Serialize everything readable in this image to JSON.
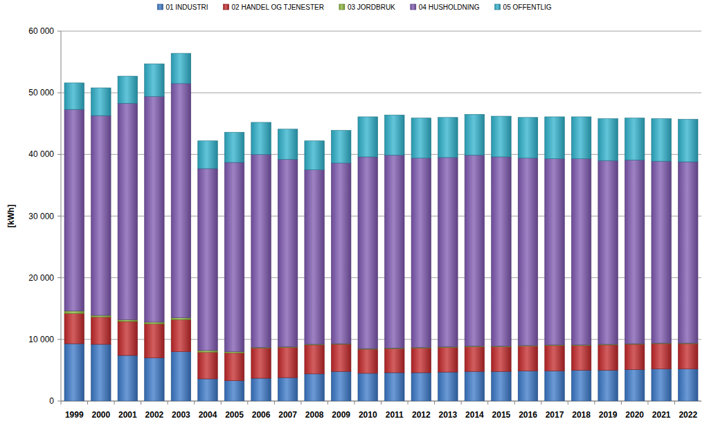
{
  "chart_data": {
    "type": "bar",
    "stacked": true,
    "grid": true,
    "legend": "top",
    "y_label": "[kWh]",
    "categories": [
      "1999",
      "2000",
      "2001",
      "2002",
      "2003",
      "2004",
      "2005",
      "2006",
      "2007",
      "2008",
      "2009",
      "2010",
      "2011",
      "2012",
      "2013",
      "2014",
      "2015",
      "2016",
      "2017",
      "2018",
      "2019",
      "2020",
      "2021",
      "2022"
    ],
    "ylim": [
      0,
      60000
    ],
    "yticks": [
      0,
      {
        "value": 10000,
        "label": "10 000"
      },
      {
        "value": 20000,
        "label": "20 000"
      },
      {
        "value": 30000,
        "label": "30 000"
      },
      {
        "value": 40000,
        "label": "40 000"
      },
      {
        "value": 50000,
        "label": "50 000"
      },
      {
        "value": 60000,
        "label": "60 000"
      }
    ],
    "series": [
      {
        "name": "01 INDUSTRI",
        "color": "#3a78c8",
        "values": [
          9300,
          9200,
          7400,
          7000,
          8000,
          3600,
          3300,
          3700,
          3800,
          4400,
          4800,
          4500,
          4600,
          4600,
          4700,
          4800,
          4800,
          4900,
          4900,
          5000,
          5000,
          5100,
          5200,
          5200
        ]
      },
      {
        "name": "02 HANDEL OG TJENESTER",
        "color": "#c4282a",
        "values": [
          4900,
          4400,
          5500,
          5500,
          5200,
          4300,
          4500,
          4900,
          4900,
          4700,
          4400,
          3900,
          3900,
          4000,
          4000,
          4000,
          4000,
          4000,
          4100,
          4000,
          4100,
          4100,
          4100,
          4100
        ]
      },
      {
        "name": "03 JORDBRUK",
        "color": "#8cb83c",
        "values": [
          400,
          300,
          300,
          300,
          300,
          300,
          200,
          100,
          100,
          100,
          100,
          100,
          100,
          100,
          100,
          100,
          100,
          100,
          100,
          100,
          100,
          100,
          100,
          100
        ]
      },
      {
        "name": "04 HUSHOLDNING",
        "color": "#7e58b0",
        "values": [
          32700,
          32400,
          35100,
          36600,
          38000,
          29500,
          30700,
          31300,
          30400,
          28300,
          29300,
          31100,
          31300,
          30700,
          30700,
          31000,
          30700,
          30400,
          30200,
          30200,
          29800,
          29800,
          29500,
          29400
        ]
      },
      {
        "name": "05 OFFENTLIG",
        "color": "#2fb2cc",
        "values": [
          4300,
          4500,
          4400,
          5300,
          4900,
          4500,
          4900,
          5200,
          4900,
          4700,
          5300,
          6500,
          6500,
          6500,
          6500,
          6600,
          6600,
          6600,
          6800,
          6800,
          6800,
          6800,
          6900,
          6900
        ]
      }
    ]
  }
}
